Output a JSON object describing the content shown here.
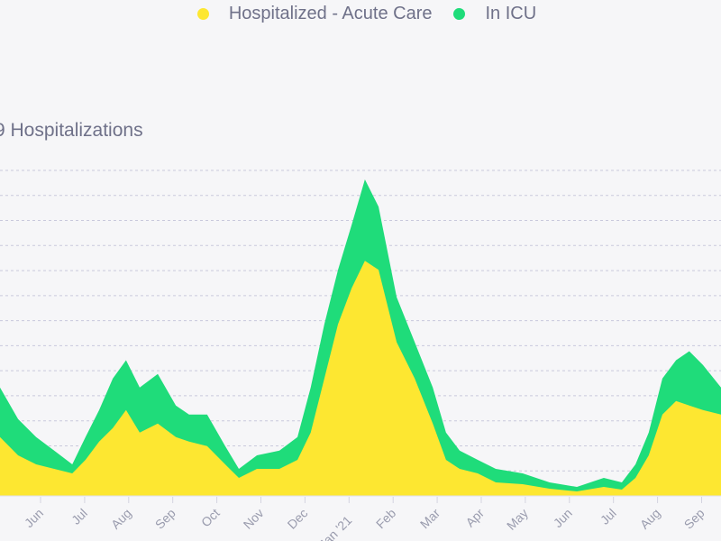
{
  "colors": {
    "acute": "#fde731",
    "icu": "#1fdc7a",
    "grid": "#c9c9dc",
    "text": "#6f7189"
  },
  "chart_data": {
    "type": "area",
    "title": "9 Hospitalizations",
    "legend": {
      "placement": "top-center",
      "entries": [
        "Hospitalized - Acute Care",
        "In ICU"
      ]
    },
    "stacked": true,
    "grid": true,
    "ylim": [
      0,
      13
    ],
    "ylabel": "",
    "xlabel": "",
    "x_ticks": [
      "Jun",
      "Jul",
      "Aug",
      "Sep",
      "Oct",
      "Nov",
      "Dec",
      "Jan '21",
      "Feb",
      "Mar",
      "Apr",
      "May",
      "Jun",
      "Jul",
      "Aug",
      "Sep"
    ],
    "x": [
      -0.92,
      -0.51,
      -0.1,
      0.31,
      0.72,
      1.02,
      1.33,
      1.64,
      1.94,
      2.25,
      2.66,
      3.07,
      3.37,
      3.78,
      4.19,
      4.5,
      4.91,
      5.42,
      5.83,
      6.13,
      6.44,
      6.75,
      7.06,
      7.36,
      7.67,
      8.08,
      8.49,
      8.9,
      9.2,
      9.51,
      9.92,
      10.33,
      10.94,
      11.55,
      12.17,
      12.78,
      13.19,
      13.5,
      13.8,
      14.11,
      14.42,
      14.72,
      15.03,
      15.44
    ],
    "xlim": [
      -0.92,
      15.44
    ],
    "series": [
      {
        "name": "Hospitalized - Acute Care",
        "values": [
          2.35,
          1.62,
          1.26,
          1.08,
          0.9,
          1.44,
          2.17,
          2.71,
          3.43,
          2.53,
          2.89,
          2.35,
          2.17,
          1.99,
          1.26,
          0.72,
          1.08,
          1.08,
          1.44,
          2.53,
          4.69,
          6.86,
          8.3,
          9.39,
          9.03,
          6.14,
          4.69,
          2.89,
          1.44,
          1.08,
          0.9,
          0.54,
          0.47,
          0.29,
          0.18,
          0.36,
          0.25,
          0.72,
          1.62,
          3.25,
          3.79,
          3.61,
          3.43,
          3.25
        ]
      },
      {
        "name": "In ICU",
        "values": [
          1.98,
          1.45,
          1.09,
          0.73,
          0.36,
          0.91,
          1.26,
          1.98,
          1.99,
          1.8,
          1.98,
          1.26,
          1.08,
          1.26,
          0.73,
          0.36,
          0.54,
          0.73,
          0.91,
          1.8,
          2.17,
          2.17,
          2.53,
          3.25,
          2.52,
          1.8,
          1.45,
          1.44,
          1.09,
          0.73,
          0.54,
          0.54,
          0.43,
          0.25,
          0.18,
          0.36,
          0.29,
          0.54,
          0.91,
          1.44,
          1.63,
          2.17,
          1.8,
          1.08
        ]
      }
    ]
  }
}
